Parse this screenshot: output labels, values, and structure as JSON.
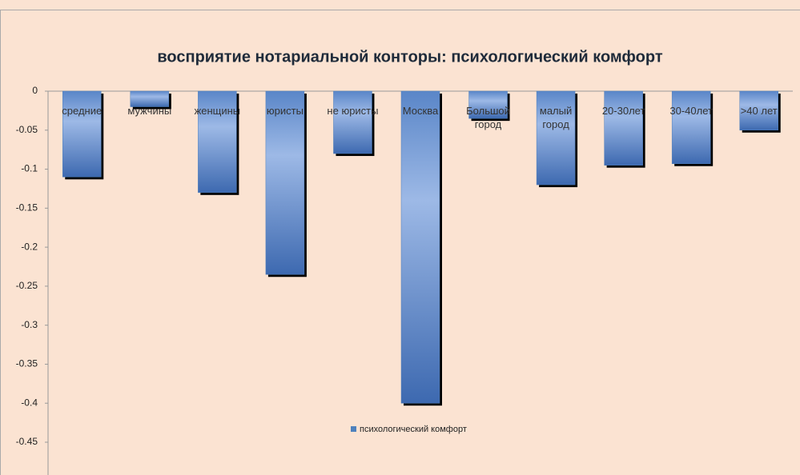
{
  "chart_data": {
    "type": "bar",
    "title": "восприятие нотариальной конторы: психологический комфорт",
    "categories": [
      "средние",
      "мужчины",
      "женщины",
      "юристы",
      "не юристы",
      "Москва",
      "Большой город",
      "малый город",
      "20-30лет",
      "30-40лет",
      ">40 лет"
    ],
    "series": [
      {
        "name": "психологический комфорт",
        "color": "#4f81bd",
        "values": [
          -0.11,
          -0.02,
          -0.13,
          -0.235,
          -0.08,
          -0.4,
          -0.035,
          -0.12,
          -0.095,
          -0.093,
          -0.05
        ]
      }
    ],
    "ylim": [
      -0.45,
      0
    ],
    "yticks": [
      0,
      -0.05,
      -0.1,
      -0.15,
      -0.2,
      -0.25,
      -0.3,
      -0.35,
      -0.4,
      -0.45
    ],
    "grid": false,
    "legend": "bottom"
  }
}
